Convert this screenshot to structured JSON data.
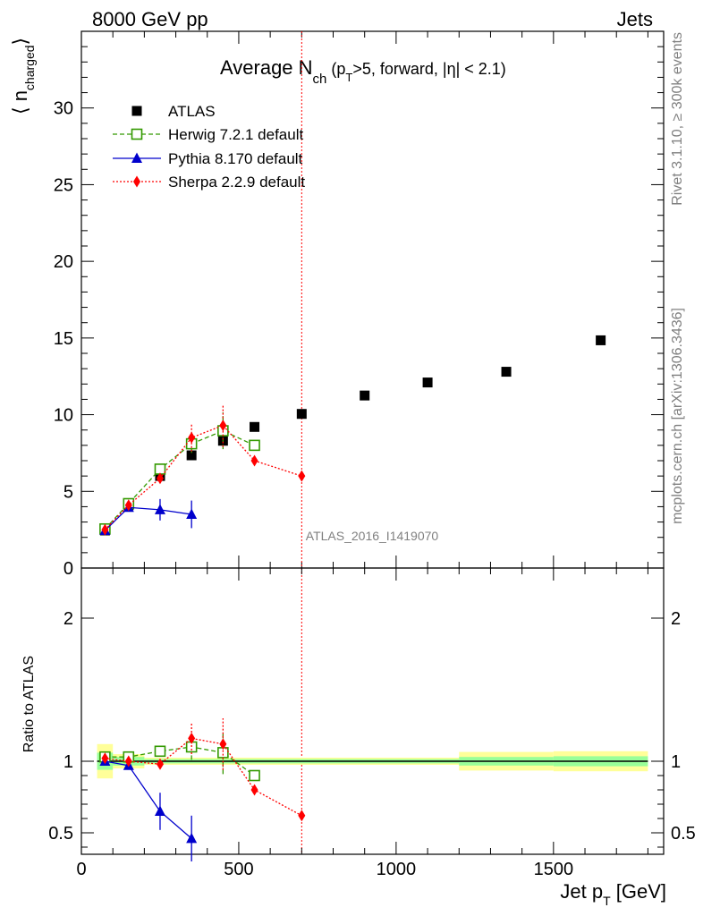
{
  "header": {
    "left": "8000 GeV pp",
    "right": "Jets"
  },
  "side_text": {
    "rivet": "Rivet 3.1.10, ≥ 300k events",
    "mcplots": "mcplots.cern.ch [arXiv:1306.3436]"
  },
  "watermark": "ATLAS_2016_I1419070",
  "title": {
    "main": "Average N",
    "sub": "ch",
    "rest1": " (p",
    "sub2": "T",
    "rest2": ">5, forward, |η| < 2.1)"
  },
  "ylabel": {
    "main": "⟨ n",
    "sub": "charged",
    "close": "⟩"
  },
  "ratio_ylabel": "Ratio to ATLAS",
  "xlabel": {
    "main": "Jet p",
    "sub": "T",
    "unit": " [GeV]"
  },
  "colors": {
    "atlas": "#000000",
    "herwig": "#339900",
    "pythia": "#0000cc",
    "sherpa": "#ff0000",
    "band_inner": "#99ff99",
    "band_outer": "#ffff99"
  },
  "chart_data": [
    {
      "type": "scatter",
      "panel": "main",
      "xlim": [
        0,
        1850
      ],
      "ylim": [
        0,
        35
      ],
      "yticks": [
        0,
        5,
        10,
        15,
        20,
        25,
        30
      ],
      "xticks": [
        0,
        500,
        1000,
        1500
      ],
      "vline_x": 700,
      "series": [
        {
          "name": "ATLAS",
          "style": "square",
          "x": [
            75,
            150,
            250,
            350,
            450,
            550,
            700,
            900,
            1100,
            1350,
            1650
          ],
          "y": [
            2.45,
            4.1,
            6.0,
            7.35,
            8.3,
            9.2,
            10.05,
            11.25,
            12.1,
            12.8,
            14.85
          ],
          "yerr": [
            0,
            0,
            0,
            0,
            0,
            0,
            0,
            0,
            0,
            0,
            0
          ]
        },
        {
          "name": "Herwig 7.2.1 default",
          "style": "open-square",
          "line": "dashed",
          "x": [
            75,
            150,
            250,
            350,
            450,
            550
          ],
          "y": [
            2.55,
            4.2,
            6.45,
            8.1,
            8.95,
            8.0
          ],
          "yerr": [
            0,
            0,
            0,
            0.6,
            1.2,
            0
          ]
        },
        {
          "name": "Pythia 8.170 default",
          "style": "triangle",
          "line": "solid",
          "x": [
            75,
            150,
            250,
            350
          ],
          "y": [
            2.45,
            3.95,
            3.8,
            3.5
          ],
          "yerr": [
            0,
            0,
            0.7,
            0.9
          ]
        },
        {
          "name": "Sherpa 2.2.9 default",
          "style": "diamond",
          "line": "dotted",
          "x": [
            75,
            150,
            250,
            350,
            450,
            550,
            700
          ],
          "y": [
            2.5,
            4.1,
            5.85,
            8.5,
            9.3,
            7.0,
            6.0
          ],
          "yerr": [
            0,
            0,
            0,
            0.9,
            1.4,
            0,
            0
          ]
        }
      ]
    },
    {
      "type": "scatter",
      "panel": "ratio",
      "xlim": [
        0,
        1850
      ],
      "ylim": [
        0.35,
        2.35
      ],
      "yticks": [
        0.5,
        1,
        2
      ],
      "bands": [
        {
          "x0": 50,
          "x1": 100,
          "inner": [
            0.94,
            1.06
          ],
          "outer": [
            0.88,
            1.12
          ]
        },
        {
          "x0": 100,
          "x1": 200,
          "inner": [
            0.97,
            1.03
          ],
          "outer": [
            0.95,
            1.05
          ]
        },
        {
          "x0": 200,
          "x1": 1200,
          "inner": [
            0.985,
            1.015
          ],
          "outer": [
            0.975,
            1.025
          ]
        },
        {
          "x0": 1200,
          "x1": 1500,
          "inner": [
            0.97,
            1.03
          ],
          "outer": [
            0.935,
            1.065
          ]
        },
        {
          "x0": 1500,
          "x1": 1800,
          "inner": [
            0.965,
            1.035
          ],
          "outer": [
            0.93,
            1.07
          ]
        }
      ],
      "series": [
        {
          "name": "Herwig 7.2.1 default",
          "style": "open-square",
          "line": "dashed",
          "x": [
            75,
            150,
            250,
            350,
            450,
            550
          ],
          "y": [
            1.03,
            1.03,
            1.07,
            1.1,
            1.06,
            0.9
          ],
          "yerr": [
            0,
            0,
            0,
            0.09,
            0.15,
            0
          ]
        },
        {
          "name": "Pythia 8.170 default",
          "style": "triangle",
          "line": "solid",
          "x": [
            75,
            150,
            250,
            350
          ],
          "y": [
            1.0,
            0.97,
            0.65,
            0.46
          ],
          "yerr": [
            0,
            0,
            0.13,
            0.16
          ]
        },
        {
          "name": "Sherpa 2.2.9 default",
          "style": "diamond",
          "line": "dotted",
          "x": [
            75,
            150,
            250,
            350,
            450,
            550,
            700
          ],
          "y": [
            1.02,
            1.0,
            0.98,
            1.16,
            1.12,
            0.8,
            0.62
          ],
          "yerr": [
            0,
            0,
            0,
            0.11,
            0.18,
            0,
            0
          ]
        }
      ]
    }
  ]
}
